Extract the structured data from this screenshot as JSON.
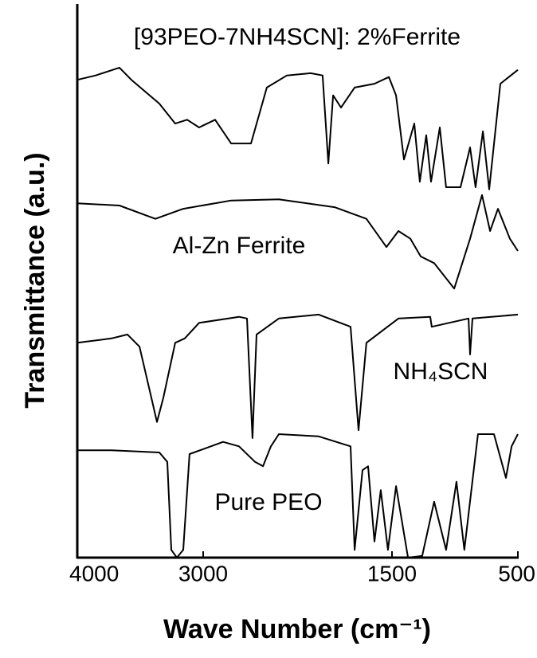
{
  "chart_data": {
    "type": "line",
    "xlabel": "Wave Number (cm⁻¹)",
    "ylabel": "Transmittance (a.u.)",
    "xlim": [
      4000,
      500
    ],
    "ylim": [
      0,
      100
    ],
    "xticks": [
      4000,
      3000,
      1500,
      500
    ],
    "series": [
      {
        "name": "[93PEO-7NH4SCN]: 2%Ferrite",
        "color": "#000000",
        "x": [
          4000,
          3854,
          3665,
          3570,
          3348,
          3222,
          3127,
          3032,
          2905,
          2778,
          2620,
          2494,
          2335,
          2146,
          2051,
          2006,
          1968,
          1905,
          1797,
          1639,
          1525,
          1468,
          1405,
          1323,
          1279,
          1228,
          1190,
          1120,
          1070,
          956,
          880,
          836,
          778,
          728,
          639,
          500
        ],
        "values": [
          86.3,
          87.1,
          88.5,
          86.3,
          82.0,
          78.4,
          79.1,
          77.7,
          79.1,
          74.8,
          74.8,
          84.9,
          87.1,
          87.5,
          87.1,
          71.2,
          83.5,
          81.3,
          84.9,
          85.6,
          86.8,
          83.5,
          71.9,
          78.4,
          67.9,
          76.3,
          67.9,
          77.7,
          66.9,
          66.9,
          74.1,
          66.9,
          77.0,
          66.5,
          85.6,
          88.1
        ]
      },
      {
        "name": "Al-Zn Ferrite",
        "color": "#000000",
        "x": [
          4000,
          3665,
          3380,
          3158,
          2778,
          2399,
          1956,
          1703,
          1544,
          1449,
          1354,
          1272,
          1165,
          1006,
          880,
          785,
          721,
          658,
          563,
          500
        ],
        "values": [
          64.0,
          63.6,
          61.2,
          63.0,
          64.5,
          64.7,
          63.3,
          61.2,
          56.1,
          59.0,
          57.6,
          54.4,
          53.2,
          48.6,
          57.6,
          65.5,
          59.0,
          63.0,
          57.6,
          55.4
        ]
      },
      {
        "name": "NH₄SCN",
        "color": "#000000",
        "x": [
          4000,
          3728,
          3601,
          3506,
          3411,
          3367,
          3317,
          3222,
          3146,
          3032,
          2715,
          2652,
          2608,
          2576,
          2399,
          2082,
          1829,
          1766,
          1703,
          1449,
          1196,
          1184,
          892,
          880,
          861,
          500
        ],
        "values": [
          38.8,
          39.6,
          40.3,
          38.1,
          28.8,
          24.5,
          28.8,
          38.8,
          39.6,
          42.4,
          43.5,
          43.2,
          21.6,
          40.3,
          43.2,
          43.9,
          41.7,
          23.0,
          38.8,
          43.2,
          43.5,
          41.7,
          43.2,
          36.7,
          43.2,
          43.9
        ]
      },
      {
        "name": "Pure PEO",
        "color": "#000000",
        "x": [
          4000,
          3728,
          3348,
          3285,
          3253,
          3209,
          3158,
          3108,
          2842,
          2715,
          2588,
          2525,
          2462,
          2399,
          2082,
          1829,
          1797,
          1734,
          1690,
          1639,
          1589,
          1532,
          1468,
          1373,
          1260,
          1165,
          1070,
          988,
          925,
          817,
          690,
          595,
          550,
          500
        ],
        "values": [
          19.4,
          19.4,
          19.0,
          17.3,
          1.4,
          0,
          1.4,
          18.7,
          20.9,
          20.1,
          17.3,
          16.5,
          20.1,
          22.3,
          21.9,
          20.1,
          1.4,
          15.8,
          16.5,
          2.9,
          12.2,
          1.4,
          12.9,
          0,
          0.3,
          10.1,
          1.4,
          13.7,
          1.4,
          22.3,
          22.3,
          14.4,
          20.1,
          22.3
        ]
      }
    ]
  }
}
